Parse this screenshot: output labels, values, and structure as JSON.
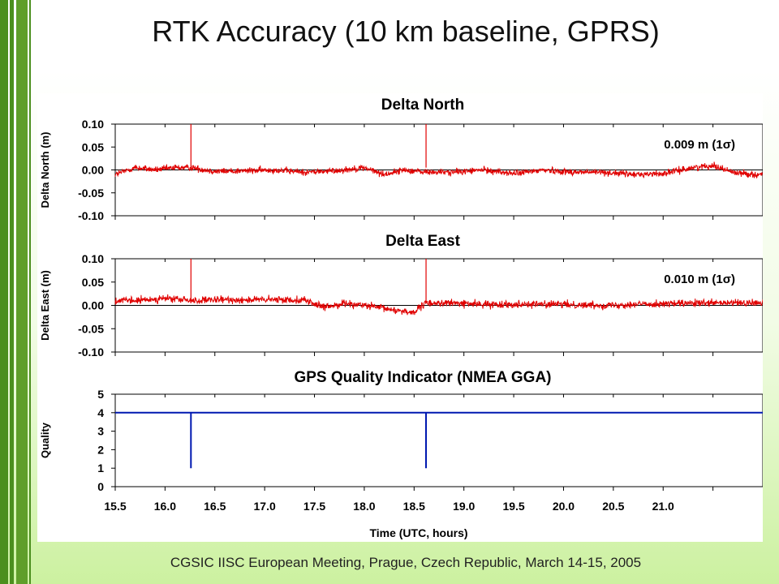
{
  "page": {
    "title": "RTK Accuracy (10 km baseline,  GPRS)",
    "footer": "CGSIC IISC European Meeting, Prague, Czech Republic, March 14-15, 2005"
  },
  "colors": {
    "series": "#e00000",
    "quality": "#0018b0",
    "side_bar": "#4b8f1e"
  },
  "chart_data": [
    {
      "type": "line",
      "title": "Delta North",
      "ylabel": "Delta North (m)",
      "xlabel": "",
      "xlim": [
        15.5,
        22.0
      ],
      "ylim": [
        -0.1,
        0.1
      ],
      "yticks": [
        0.1,
        0.05,
        0.0,
        -0.05,
        -0.1
      ],
      "ytick_labels": [
        "0.10",
        "0.05",
        "0.00",
        "-0.05",
        "-0.10"
      ],
      "annotation": "0.009 m (1σ)",
      "series": [
        {
          "x": [
            15.5,
            15.7,
            15.9,
            16.1,
            16.26,
            16.5,
            16.8,
            17.1,
            17.4,
            17.7,
            18.0,
            18.2,
            18.4,
            18.62,
            18.9,
            19.2,
            19.5,
            19.8,
            20.1,
            20.4,
            20.7,
            21.0,
            21.3,
            21.5,
            21.7,
            21.9
          ],
          "y": [
            -0.01,
            0.005,
            0.0,
            0.005,
            0.005,
            -0.003,
            -0.002,
            0.0,
            -0.005,
            -0.002,
            0.005,
            -0.01,
            0.0,
            -0.005,
            -0.005,
            0.0,
            -0.008,
            0.0,
            -0.005,
            -0.005,
            -0.01,
            -0.008,
            0.005,
            0.01,
            -0.005,
            -0.01
          ],
          "spikes": [
            16.26,
            18.62
          ],
          "noise_sigma": 0.009
        }
      ]
    },
    {
      "type": "line",
      "title": "Delta East",
      "ylabel": "Delta East (m)",
      "xlabel": "",
      "xlim": [
        15.5,
        22.0
      ],
      "ylim": [
        -0.1,
        0.1
      ],
      "yticks": [
        0.1,
        0.05,
        0.0,
        -0.05,
        -0.1
      ],
      "ytick_labels": [
        "0.10",
        "0.05",
        "0.00",
        "-0.05",
        "-0.10"
      ],
      "annotation": "0.010 m (1σ)",
      "series": [
        {
          "x": [
            15.5,
            15.7,
            16.0,
            16.3,
            16.6,
            17.0,
            17.4,
            17.6,
            17.8,
            18.0,
            18.3,
            18.5,
            18.62,
            18.9,
            19.2,
            19.6,
            20.0,
            20.4,
            20.8,
            21.2,
            21.6,
            21.9
          ],
          "y": [
            0.01,
            0.01,
            0.015,
            0.01,
            0.012,
            0.012,
            0.012,
            -0.005,
            0.005,
            0.0,
            -0.01,
            -0.015,
            0.005,
            0.005,
            0.002,
            0.003,
            0.002,
            0.0,
            0.003,
            0.004,
            0.005,
            0.005
          ],
          "spikes": [
            16.26,
            18.62
          ],
          "noise_sigma": 0.01
        }
      ]
    },
    {
      "type": "line",
      "title": "GPS Quality Indicator (NMEA GGA)",
      "ylabel": "Quality",
      "xlabel": "Time (UTC, hours)",
      "xlim": [
        15.5,
        22.0
      ],
      "ylim": [
        0,
        5
      ],
      "yticks": [
        5,
        4,
        3,
        2,
        1,
        0
      ],
      "ytick_labels": [
        "5",
        "4",
        "3",
        "2",
        "1",
        "0"
      ],
      "xticks": [
        15.5,
        16.0,
        16.5,
        17.0,
        17.5,
        18.0,
        18.5,
        19.0,
        19.5,
        20.0,
        20.5,
        21.0
      ],
      "xtick_labels": [
        "15.5",
        "16.0",
        "16.5",
        "17.0",
        "17.5",
        "18.0",
        "18.5",
        "19.0",
        "19.5",
        "20.0",
        "20.5",
        "21.0"
      ],
      "series": [
        {
          "x": [
            15.5,
            16.26,
            16.26,
            16.26,
            18.62,
            18.62,
            18.62,
            22.0
          ],
          "y": [
            4,
            4,
            1,
            4,
            4,
            1,
            4,
            4
          ]
        }
      ]
    }
  ]
}
